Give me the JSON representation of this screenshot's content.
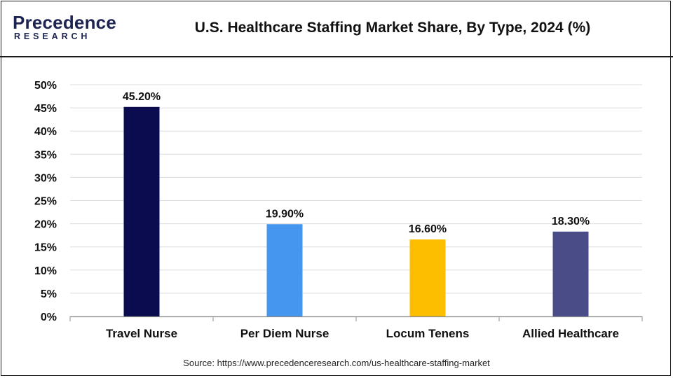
{
  "header": {
    "logo_word": "Precedence",
    "logo_sub": "RESEARCH",
    "title": "U.S. Healthcare Staffing Market Share, By Type, 2024 (%)"
  },
  "source": "Source: https://www.precedenceresearch.com/us-healthcare-staffing-market",
  "chart_data": {
    "type": "bar",
    "title": "U.S. Healthcare Staffing Market Share, By Type, 2024 (%)",
    "categories": [
      "Travel Nurse",
      "Per Diem Nurse",
      "Locum Tenens",
      "Allied Healthcare"
    ],
    "values": [
      45.2,
      19.9,
      16.6,
      18.3
    ],
    "value_labels": [
      "45.20%",
      "19.90%",
      "16.60%",
      "18.30%"
    ],
    "colors": [
      "#0b0b4f",
      "#4596ef",
      "#fdbe00",
      "#494c86"
    ],
    "xlabel": "",
    "ylabel": "",
    "ylim": [
      0,
      50
    ],
    "yticks": [
      "0%",
      "5%",
      "10%",
      "15%",
      "20%",
      "25%",
      "30%",
      "35%",
      "40%",
      "45%",
      "50%"
    ],
    "grid": true,
    "legend": "none"
  }
}
